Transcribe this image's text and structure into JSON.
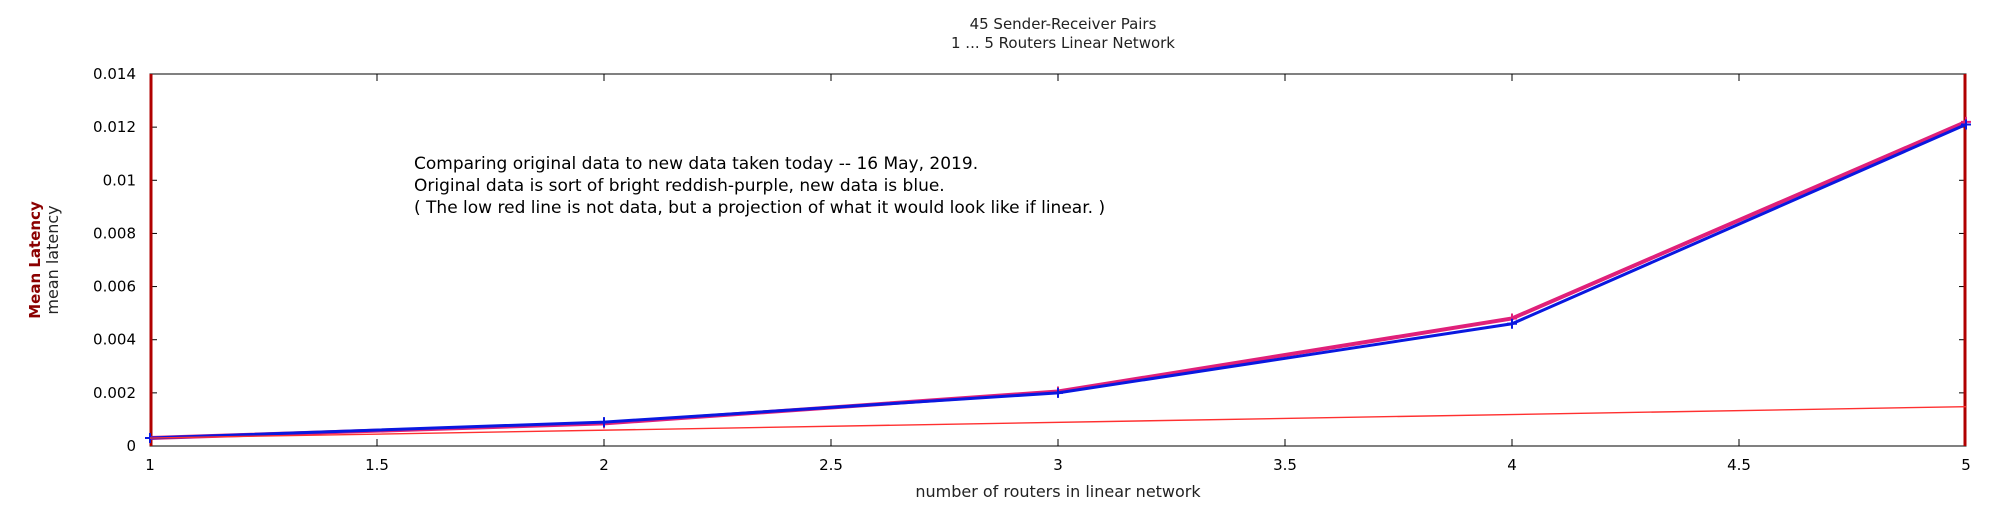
{
  "chart_data": {
    "type": "line",
    "title": "45 Sender-Receiver Pairs",
    "subtitle": "1 ... 5 Routers Linear Network",
    "xlabel": "number of routers in linear network",
    "ylabel": "mean latency",
    "ylabel_secondary": "Mean Latency",
    "xlim": [
      1,
      5
    ],
    "ylim": [
      0,
      0.014
    ],
    "xticks": [
      "1",
      "1.5",
      "2",
      "2.5",
      "3",
      "3.5",
      "4",
      "4.5",
      "5"
    ],
    "yticks": [
      "0",
      "0.002",
      "0.004",
      "0.006",
      "0.008",
      "0.01",
      "0.012",
      "0.014"
    ],
    "annotation": [
      "Comparing original data to new data taken today -- 16 May, 2019.",
      "Original data is sort of bright reddish-purple, new data is blue.",
      "( The low red line is not data, but a projection of what it would look like if linear. )"
    ],
    "series": [
      {
        "color": "#e0207a",
        "x": [
          1,
          2,
          3,
          4,
          5
        ],
        "y": [
          0.0003,
          0.00085,
          0.00205,
          0.0048,
          0.0122
        ]
      },
      {
        "color": "#0a18e0",
        "x": [
          1,
          2,
          3,
          4,
          5
        ],
        "y": [
          0.0003,
          0.0009,
          0.002,
          0.0046,
          0.0121
        ]
      },
      {
        "color": "#ff3030",
        "x": [
          1,
          5
        ],
        "y": [
          0.0003,
          0.00148
        ]
      }
    ]
  }
}
